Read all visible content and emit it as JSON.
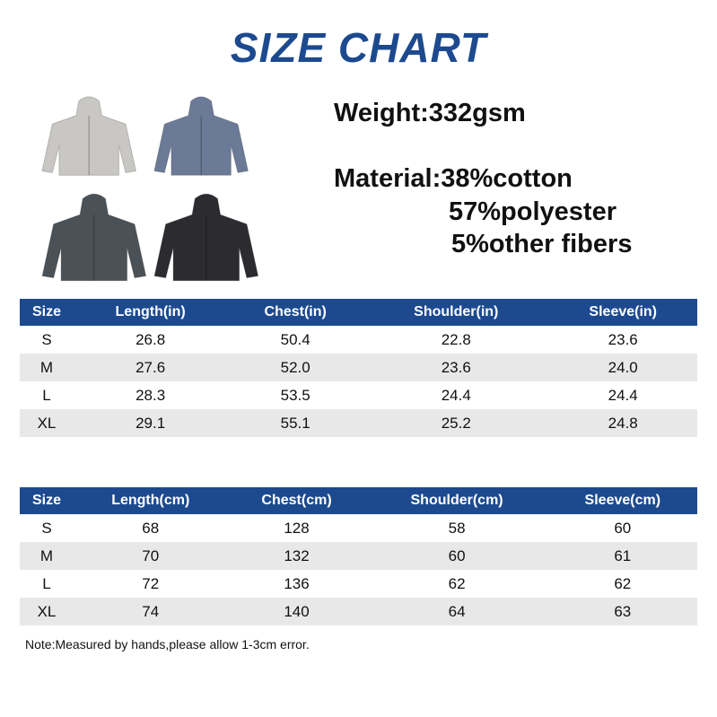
{
  "title": "SIZE CHART",
  "weight": "Weight:332gsm",
  "material": {
    "line1": "Material:38%cotton",
    "line2": "57%polyester",
    "line3": "5%other fibers"
  },
  "colors": {
    "header": "#1d4a8f",
    "hoodies": [
      "#c9c7c4",
      "#6b7a96",
      "#4b5257",
      "#2c2c30"
    ]
  },
  "table_in": {
    "headers": [
      "Size",
      "Length(in)",
      "Chest(in)",
      "Shoulder(in)",
      "Sleeve(in)"
    ],
    "rows": [
      [
        "S",
        "26.8",
        "50.4",
        "22.8",
        "23.6"
      ],
      [
        "M",
        "27.6",
        "52.0",
        "23.6",
        "24.0"
      ],
      [
        "L",
        "28.3",
        "53.5",
        "24.4",
        "24.4"
      ],
      [
        "XL",
        "29.1",
        "55.1",
        "25.2",
        "24.8"
      ]
    ]
  },
  "table_cm": {
    "headers": [
      "Size",
      "Length(cm)",
      "Chest(cm)",
      "Shoulder(cm)",
      "Sleeve(cm)"
    ],
    "rows": [
      [
        "S",
        "68",
        "128",
        "58",
        "60"
      ],
      [
        "M",
        "70",
        "132",
        "60",
        "61"
      ],
      [
        "L",
        "72",
        "136",
        "62",
        "62"
      ],
      [
        "XL",
        "74",
        "140",
        "64",
        "63"
      ]
    ]
  },
  "note": "Note:Measured by hands,please allow 1-3cm error."
}
